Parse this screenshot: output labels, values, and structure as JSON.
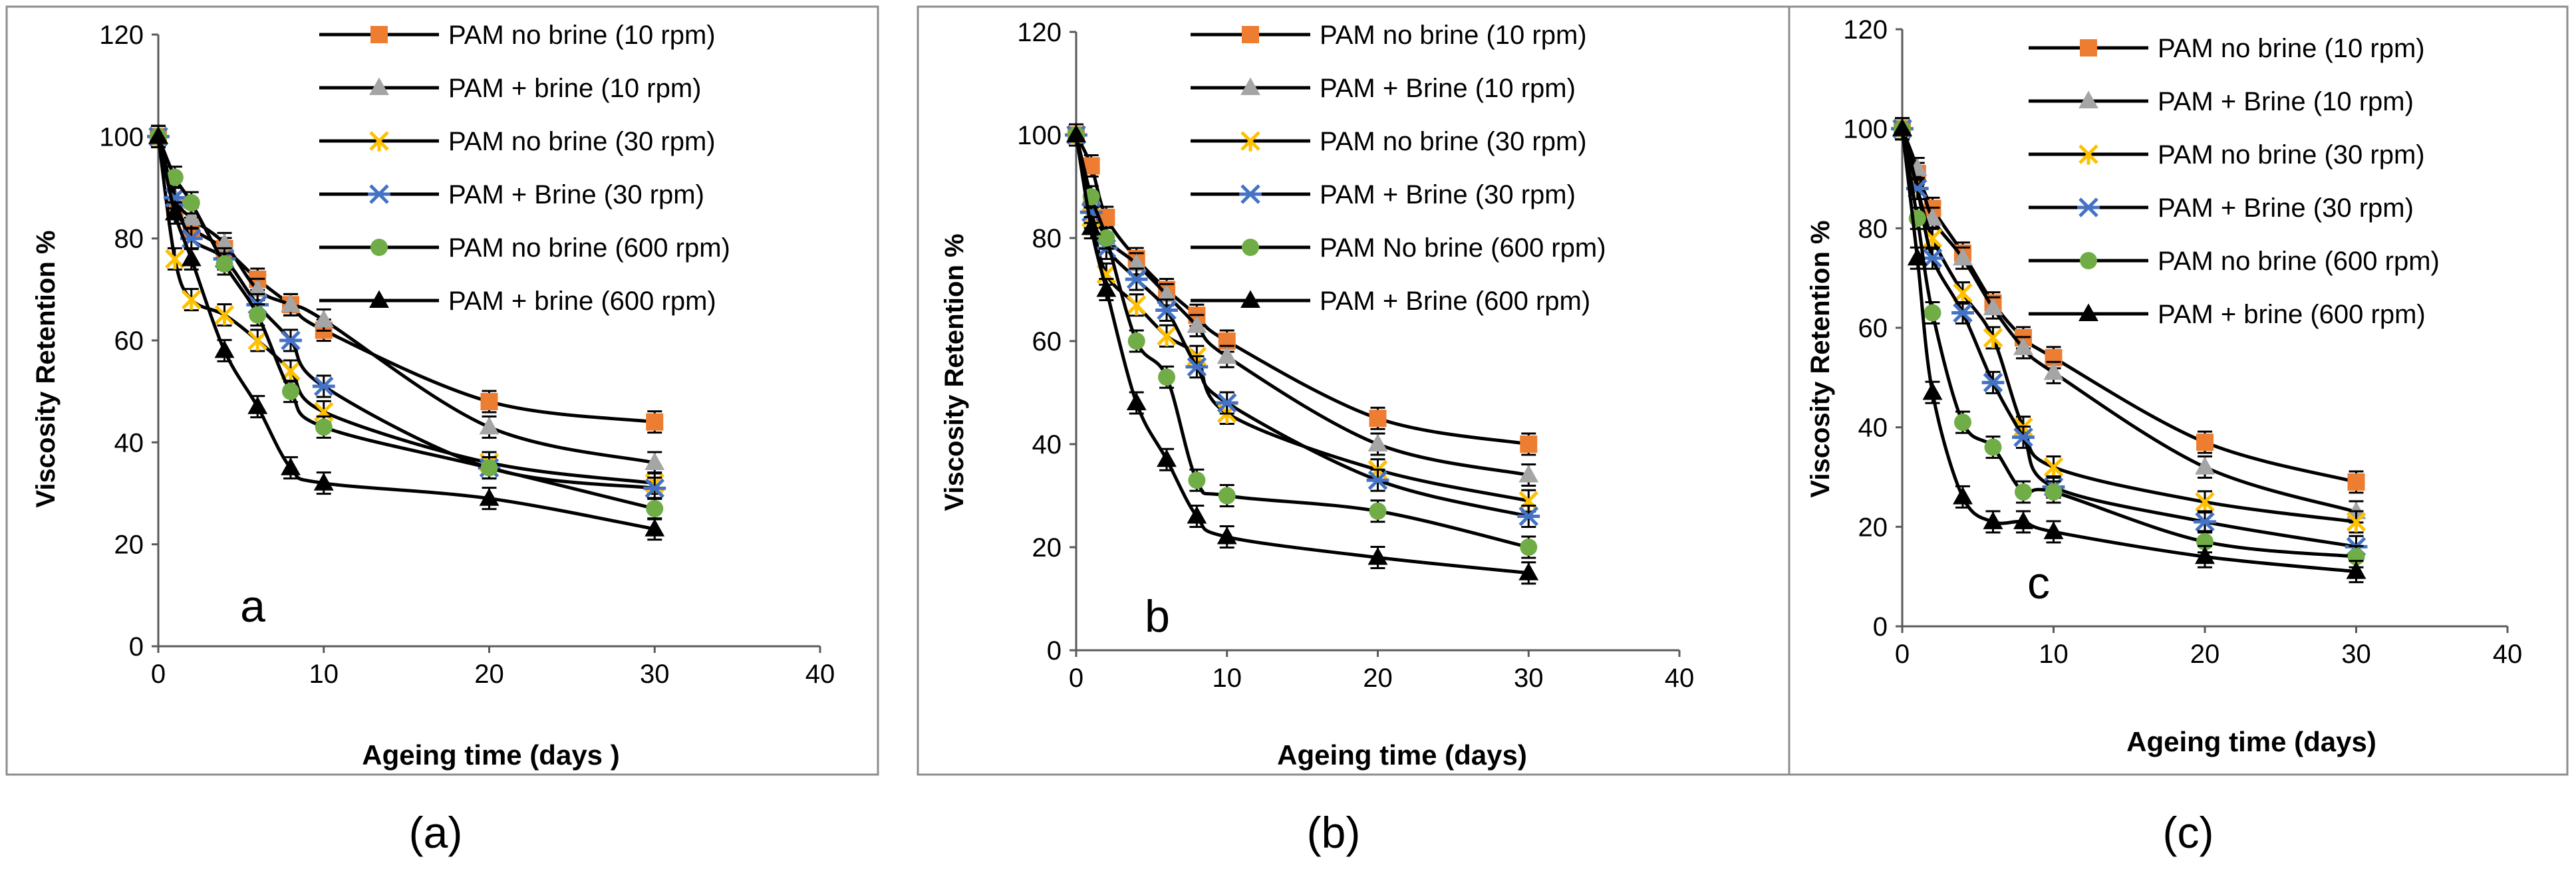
{
  "chart_data": [
    {
      "type": "line",
      "panel_label": "a",
      "caption": "(a)",
      "xlabel": "Ageing time (days )",
      "ylabel": "Viscosity Retention %",
      "xlim": [
        0,
        40
      ],
      "ylim": [
        0,
        120
      ],
      "xticks": [
        "0",
        "10",
        "20",
        "30",
        "40"
      ],
      "yticks": [
        "0",
        "20",
        "40",
        "60",
        "80",
        "100",
        "120"
      ],
      "x": [
        0,
        1,
        2,
        4,
        6,
        8,
        10,
        20,
        30
      ],
      "series": [
        {
          "name": "PAM no brine (10 rpm)",
          "marker": "square",
          "color": "#ED7D31",
          "values": [
            100,
            86,
            82,
            78,
            72,
            67,
            62,
            48,
            44
          ]
        },
        {
          "name": "PAM + brine (10 rpm)",
          "marker": "triangle",
          "color": "#A5A5A5",
          "values": [
            100,
            88,
            84,
            79,
            70,
            67,
            64,
            43,
            36
          ]
        },
        {
          "name": "PAM no brine (30 rpm)",
          "marker": "star",
          "color": "#FFC000",
          "values": [
            100,
            76,
            68,
            65,
            60,
            54,
            46,
            36,
            32
          ]
        },
        {
          "name": "PAM + Brine (30 rpm)",
          "marker": "asterisk",
          "color": "#4472C4",
          "values": [
            100,
            88,
            80,
            76,
            67,
            60,
            51,
            35,
            31
          ]
        },
        {
          "name": "PAM no brine (600 rpm)",
          "marker": "circle",
          "color": "#70AD47",
          "values": [
            100,
            92,
            87,
            75,
            65,
            50,
            43,
            35,
            27
          ]
        },
        {
          "name": "PAM + brine (600 rpm)",
          "marker": "triangle",
          "color": "#000000",
          "values": [
            100,
            85,
            76,
            58,
            47,
            35,
            32,
            29,
            23
          ]
        }
      ]
    },
    {
      "type": "line",
      "panel_label": "b",
      "caption": "(b)",
      "xlabel": "Ageing time (days)",
      "ylabel": "Viscosity Retention %",
      "xlim": [
        0,
        40
      ],
      "ylim": [
        0,
        120
      ],
      "xticks": [
        "0",
        "10",
        "20",
        "30",
        "40"
      ],
      "yticks": [
        "0",
        "20",
        "40",
        "60",
        "80",
        "100",
        "120"
      ],
      "x": [
        0,
        1,
        2,
        4,
        6,
        8,
        10,
        20,
        30
      ],
      "series": [
        {
          "name": "PAM no brine (10 rpm)",
          "marker": "square",
          "color": "#ED7D31",
          "values": [
            100,
            94,
            84,
            76,
            70,
            65,
            60,
            45,
            40
          ]
        },
        {
          "name": "PAM + Brine (10 rpm)",
          "marker": "triangle",
          "color": "#A5A5A5",
          "values": [
            100,
            88,
            80,
            75,
            69,
            63,
            57,
            40,
            34
          ]
        },
        {
          "name": "PAM no brine (30 rpm)",
          "marker": "star",
          "color": "#FFC000",
          "values": [
            100,
            84,
            73,
            67,
            61,
            57,
            46,
            35,
            29
          ]
        },
        {
          "name": "PAM + Brine (30 rpm)",
          "marker": "asterisk",
          "color": "#4472C4",
          "values": [
            100,
            85,
            78,
            72,
            66,
            55,
            48,
            33,
            26
          ]
        },
        {
          "name": "PAM No brine (600 rpm)",
          "marker": "circle",
          "color": "#70AD47",
          "values": [
            100,
            88,
            80,
            60,
            53,
            33,
            30,
            27,
            20
          ]
        },
        {
          "name": "PAM + Brine (600 rpm)",
          "marker": "triangle",
          "color": "#000000",
          "values": [
            100,
            82,
            70,
            48,
            37,
            26,
            22,
            18,
            15
          ]
        }
      ]
    },
    {
      "type": "line",
      "panel_label": "c",
      "caption": "(c)",
      "xlabel": "Ageing time (days)",
      "ylabel": "Viscosity Retention %",
      "xlim": [
        0,
        40
      ],
      "ylim": [
        0,
        120
      ],
      "xticks": [
        "0",
        "10",
        "20",
        "30",
        "40"
      ],
      "yticks": [
        "0",
        "20",
        "40",
        "60",
        "80",
        "100",
        "120"
      ],
      "x": [
        0,
        1,
        2,
        4,
        6,
        8,
        10,
        20,
        30
      ],
      "series": [
        {
          "name": "PAM no brine (10 rpm)",
          "marker": "square",
          "color": "#ED7D31",
          "values": [
            100,
            91,
            84,
            75,
            65,
            58,
            54,
            37,
            29
          ]
        },
        {
          "name": "PAM + Brine (10 rpm)",
          "marker": "triangle",
          "color": "#A5A5A5",
          "values": [
            100,
            92,
            82,
            74,
            64,
            56,
            51,
            32,
            23
          ]
        },
        {
          "name": "PAM no brine (30 rpm)",
          "marker": "star",
          "color": "#FFC000",
          "values": [
            100,
            88,
            78,
            67,
            58,
            40,
            32,
            25,
            21
          ]
        },
        {
          "name": "PAM + Brine (30 rpm)",
          "marker": "asterisk",
          "color": "#4472C4",
          "values": [
            100,
            88,
            74,
            63,
            49,
            38,
            28,
            21,
            16
          ]
        },
        {
          "name": "PAM no brine (600 rpm)",
          "marker": "circle",
          "color": "#70AD47",
          "values": [
            100,
            82,
            63,
            41,
            36,
            27,
            27,
            17,
            14
          ]
        },
        {
          "name": "PAM + brine (600 rpm)",
          "marker": "triangle",
          "color": "#000000",
          "values": [
            100,
            74,
            47,
            26,
            21,
            21,
            19,
            14,
            11
          ]
        }
      ]
    }
  ]
}
